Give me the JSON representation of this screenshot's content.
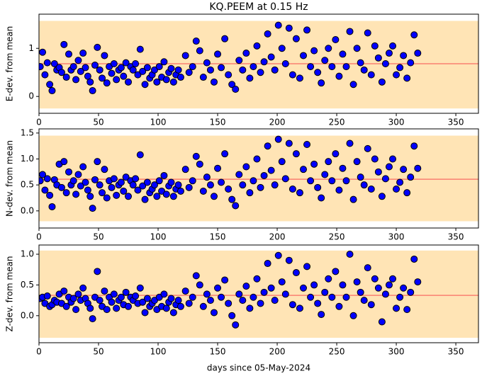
{
  "chart_data": [
    {
      "type": "scatter",
      "title": "KQ.PEEM at 0.15 Hz",
      "ylabel": "E-dev. from mean",
      "x": [
        1,
        3,
        5,
        7,
        9,
        11,
        13,
        15,
        17,
        19,
        21,
        23,
        25,
        27,
        29,
        31,
        33,
        35,
        37,
        39,
        41,
        43,
        45,
        47,
        49,
        51,
        53,
        55,
        57,
        59,
        61,
        63,
        65,
        67,
        69,
        71,
        73,
        75,
        77,
        79,
        81,
        83,
        85,
        87,
        89,
        91,
        93,
        95,
        97,
        99,
        101,
        103,
        105,
        107,
        109,
        111,
        113,
        115,
        117,
        119,
        123,
        126,
        129,
        132,
        135,
        138,
        141,
        144,
        147,
        150,
        153,
        156,
        159,
        162,
        165,
        168,
        171,
        174,
        177,
        180,
        183,
        186,
        189,
        192,
        195,
        198,
        201,
        204,
        207,
        210,
        213,
        216,
        219,
        222,
        225,
        228,
        231,
        234,
        237,
        240,
        243,
        246,
        249,
        252,
        255,
        258,
        261,
        264,
        267,
        270,
        273,
        276,
        279,
        282,
        285,
        288,
        291,
        294,
        297,
        300,
        303,
        306,
        309,
        312,
        315,
        318
      ],
      "values": [
        0.62,
        0.92,
        0.45,
        0.7,
        0.25,
        0.12,
        0.68,
        0.55,
        0.6,
        0.5,
        1.08,
        0.4,
        0.88,
        0.55,
        0.62,
        0.35,
        0.75,
        0.52,
        0.9,
        0.6,
        0.42,
        0.3,
        0.12,
        0.65,
        1.02,
        0.55,
        0.38,
        0.85,
        0.28,
        0.62,
        0.48,
        0.68,
        0.35,
        0.55,
        0.6,
        0.42,
        0.7,
        0.3,
        0.62,
        0.55,
        0.68,
        0.45,
        0.98,
        0.52,
        0.25,
        0.6,
        0.38,
        0.45,
        0.55,
        0.3,
        0.62,
        0.4,
        0.72,
        0.35,
        0.5,
        0.58,
        0.3,
        0.45,
        0.55,
        0.4,
        0.85,
        0.5,
        0.62,
        1.15,
        0.95,
        0.4,
        0.7,
        0.55,
        0.3,
        0.88,
        0.6,
        1.2,
        0.45,
        0.25,
        0.15,
        0.75,
        0.55,
        0.9,
        0.38,
        0.62,
        1.05,
        0.5,
        0.72,
        1.3,
        0.82,
        0.55,
        1.48,
        1.0,
        0.68,
        1.42,
        0.45,
        1.2,
        0.38,
        0.85,
        1.38,
        0.62,
        0.95,
        0.5,
        0.28,
        0.75,
        1.0,
        0.62,
        1.18,
        0.42,
        0.88,
        0.62,
        1.35,
        0.25,
        1.0,
        0.7,
        0.55,
        1.32,
        0.45,
        1.05,
        0.8,
        0.3,
        0.68,
        0.9,
        1.05,
        0.45,
        0.6,
        0.85,
        0.38,
        0.7,
        1.28,
        0.9
      ],
      "color": "#0000ff",
      "band": [
        -0.25,
        1.57
      ],
      "band_color": "#ffe4b5",
      "mean": 0.68,
      "mean_color": "#fa8072",
      "xlim": [
        0,
        369
      ],
      "ylim": [
        -0.35,
        1.71
      ],
      "xticks": [
        0,
        50,
        100,
        150,
        200,
        250,
        300,
        350
      ],
      "yticks": [
        0,
        1
      ]
    },
    {
      "type": "scatter",
      "ylabel": "N-dev. from mean",
      "x": [
        1,
        3,
        5,
        7,
        9,
        11,
        13,
        15,
        17,
        19,
        21,
        23,
        25,
        27,
        29,
        31,
        33,
        35,
        37,
        39,
        41,
        43,
        45,
        47,
        49,
        51,
        53,
        55,
        57,
        59,
        61,
        63,
        65,
        67,
        69,
        71,
        73,
        75,
        77,
        79,
        81,
        83,
        85,
        87,
        89,
        91,
        93,
        95,
        97,
        99,
        101,
        103,
        105,
        107,
        109,
        111,
        113,
        115,
        117,
        119,
        123,
        126,
        129,
        132,
        135,
        138,
        141,
        144,
        147,
        150,
        153,
        156,
        159,
        162,
        165,
        168,
        171,
        174,
        177,
        180,
        183,
        186,
        189,
        192,
        195,
        198,
        201,
        204,
        207,
        210,
        213,
        216,
        219,
        222,
        225,
        228,
        231,
        234,
        237,
        240,
        243,
        246,
        249,
        252,
        255,
        258,
        261,
        264,
        267,
        270,
        273,
        276,
        279,
        282,
        285,
        288,
        291,
        294,
        297,
        300,
        303,
        306,
        309,
        312,
        315,
        318
      ],
      "values": [
        0.58,
        0.7,
        0.4,
        0.62,
        0.3,
        0.08,
        0.6,
        0.5,
        0.9,
        0.45,
        0.95,
        0.35,
        0.75,
        0.5,
        0.58,
        0.32,
        0.7,
        0.48,
        0.85,
        0.55,
        0.4,
        0.28,
        0.05,
        0.6,
        0.95,
        0.5,
        0.35,
        0.8,
        0.25,
        0.58,
        0.45,
        0.62,
        0.3,
        0.5,
        0.55,
        0.38,
        0.65,
        0.28,
        0.58,
        0.5,
        0.62,
        0.4,
        1.08,
        0.48,
        0.22,
        0.55,
        0.35,
        0.42,
        0.5,
        0.28,
        0.58,
        0.38,
        0.68,
        0.32,
        0.48,
        0.55,
        0.28,
        0.42,
        0.5,
        0.38,
        0.8,
        0.45,
        0.58,
        1.05,
        0.9,
        0.38,
        0.65,
        0.5,
        0.28,
        0.82,
        0.55,
        1.1,
        0.42,
        0.22,
        0.1,
        0.7,
        0.5,
        0.85,
        0.35,
        0.58,
        1.0,
        0.45,
        0.68,
        1.25,
        0.78,
        0.5,
        1.38,
        0.95,
        0.62,
        1.3,
        0.42,
        1.1,
        0.35,
        0.8,
        1.28,
        0.58,
        0.9,
        0.45,
        0.25,
        0.7,
        0.95,
        0.58,
        1.1,
        0.4,
        0.82,
        0.58,
        1.3,
        0.22,
        0.95,
        0.65,
        0.5,
        1.2,
        0.42,
        1.0,
        0.75,
        0.28,
        0.62,
        0.85,
        1.0,
        0.42,
        0.55,
        0.8,
        0.35,
        0.65,
        1.25,
        0.82
      ],
      "color": "#0000ff",
      "band": [
        -0.2,
        1.45
      ],
      "band_color": "#ffe4b5",
      "mean": 0.61,
      "mean_color": "#fa8072",
      "xlim": [
        0,
        369
      ],
      "ylim": [
        -0.33,
        1.58
      ],
      "xticks": [
        0,
        50,
        100,
        150,
        200,
        250,
        300,
        350
      ],
      "yticks": [
        {
          "value": 0,
          "label": "0.0"
        },
        {
          "value": 0.5,
          "label": "0.5"
        },
        {
          "value": 1,
          "label": "1.0"
        },
        {
          "value": 1.5,
          "label": "1.5"
        }
      ]
    },
    {
      "type": "scatter",
      "ylabel": "Z-dev. from mean",
      "xlabel": "days since 05-May-2024",
      "x": [
        1,
        3,
        5,
        7,
        9,
        11,
        13,
        15,
        17,
        19,
        21,
        23,
        25,
        27,
        29,
        31,
        33,
        35,
        37,
        39,
        41,
        43,
        45,
        47,
        49,
        51,
        53,
        55,
        57,
        59,
        61,
        63,
        65,
        67,
        69,
        71,
        73,
        75,
        77,
        79,
        81,
        83,
        85,
        87,
        89,
        91,
        93,
        95,
        97,
        99,
        101,
        103,
        105,
        107,
        109,
        111,
        113,
        115,
        117,
        119,
        123,
        126,
        129,
        132,
        135,
        138,
        141,
        144,
        147,
        150,
        153,
        156,
        159,
        162,
        165,
        168,
        171,
        174,
        177,
        180,
        183,
        186,
        189,
        192,
        195,
        198,
        201,
        204,
        207,
        210,
        213,
        216,
        219,
        222,
        225,
        228,
        231,
        234,
        237,
        240,
        243,
        246,
        249,
        252,
        255,
        258,
        261,
        264,
        267,
        270,
        273,
        276,
        279,
        282,
        285,
        288,
        291,
        294,
        297,
        300,
        303,
        306,
        309,
        312,
        315,
        318
      ],
      "values": [
        0.28,
        0.3,
        0.2,
        0.32,
        0.15,
        0.18,
        0.25,
        0.22,
        0.35,
        0.2,
        0.4,
        0.15,
        0.3,
        0.22,
        0.28,
        0.1,
        0.35,
        0.25,
        0.45,
        0.28,
        0.2,
        0.12,
        -0.05,
        0.3,
        0.72,
        0.25,
        0.15,
        0.4,
        0.1,
        0.3,
        0.22,
        0.35,
        0.12,
        0.25,
        0.3,
        0.18,
        0.38,
        0.15,
        0.3,
        0.25,
        0.32,
        0.2,
        0.45,
        0.22,
        0.05,
        0.28,
        0.15,
        0.2,
        0.25,
        0.1,
        0.3,
        0.15,
        0.35,
        0.12,
        0.22,
        0.28,
        0.05,
        0.18,
        0.25,
        0.15,
        0.4,
        0.2,
        0.3,
        0.65,
        0.5,
        0.15,
        0.35,
        0.25,
        0.05,
        0.45,
        0.3,
        0.58,
        0.2,
        0.0,
        -0.15,
        0.35,
        0.25,
        0.48,
        0.12,
        0.3,
        0.6,
        0.2,
        0.38,
        0.85,
        0.45,
        0.25,
        0.98,
        0.55,
        0.35,
        0.9,
        0.18,
        0.7,
        0.12,
        0.45,
        0.8,
        0.3,
        0.5,
        0.2,
        0.02,
        0.38,
        0.6,
        0.3,
        0.72,
        0.15,
        0.5,
        0.3,
        1.0,
        0.0,
        0.55,
        0.38,
        0.25,
        0.78,
        0.18,
        0.6,
        0.45,
        -0.1,
        0.35,
        0.5,
        0.6,
        0.12,
        0.3,
        0.45,
        0.1,
        0.38,
        0.92,
        0.55
      ],
      "color": "#0000ff",
      "band": [
        -0.36,
        1.06
      ],
      "band_color": "#ffe4b5",
      "mean": 0.33,
      "mean_color": "#fa8072",
      "xlim": [
        0,
        369
      ],
      "ylim": [
        -0.44,
        1.15
      ],
      "xticks": [
        0,
        50,
        100,
        150,
        200,
        250,
        300,
        350
      ],
      "yticks": [
        {
          "value": 0,
          "label": "0.0"
        },
        {
          "value": 0.5,
          "label": "0.5"
        },
        {
          "value": 1,
          "label": "1.0"
        }
      ]
    }
  ]
}
